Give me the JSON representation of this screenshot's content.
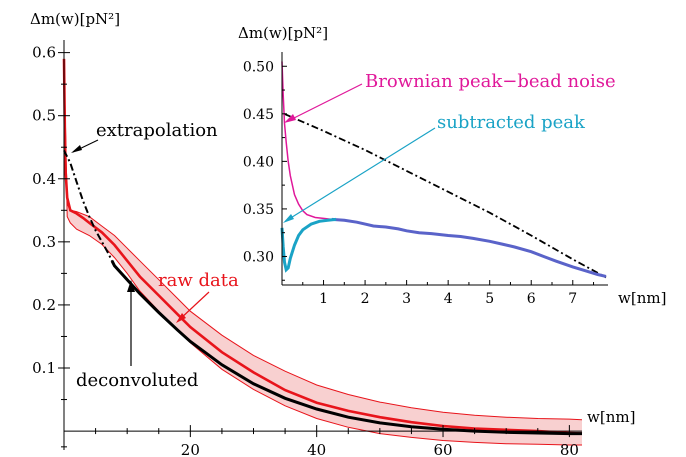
{
  "chart_data": [
    {
      "type": "line",
      "ylabel": "Δm(w)[pN²]",
      "xlabel": "w[nm]",
      "xlim": [
        0,
        82
      ],
      "ylim": [
        -0.03,
        0.62
      ],
      "xticks": [
        20,
        40,
        60,
        80
      ],
      "yticks": [
        0.1,
        0.2,
        0.3,
        0.4,
        0.5,
        0.6
      ],
      "colors": {
        "raw": "#e8141b",
        "band": "#f7c9c9",
        "deconvoluted": "#000000",
        "extrapolation": "#000000"
      },
      "series": [
        {
          "name": "raw data",
          "x": [
            0,
            0.2,
            0.5,
            1,
            2,
            3,
            4,
            6,
            8,
            10,
            12,
            15,
            18,
            20,
            25,
            30,
            35,
            40,
            45,
            50,
            55,
            60,
            65,
            70,
            75,
            80,
            82
          ],
          "y": [
            0.59,
            0.42,
            0.37,
            0.35,
            0.345,
            0.338,
            0.33,
            0.315,
            0.295,
            0.27,
            0.245,
            0.215,
            0.185,
            0.165,
            0.125,
            0.093,
            0.065,
            0.045,
            0.032,
            0.022,
            0.014,
            0.008,
            0.004,
            0.002,
            0.0,
            -0.003,
            -0.004
          ]
        },
        {
          "name": "raw data upper band",
          "x": [
            0,
            0.5,
            1,
            2,
            4,
            6,
            8,
            10,
            12,
            15,
            18,
            20,
            25,
            30,
            35,
            40,
            45,
            50,
            55,
            60,
            65,
            70,
            75,
            80,
            82
          ],
          "y": [
            0.59,
            0.36,
            0.35,
            0.348,
            0.34,
            0.325,
            0.31,
            0.29,
            0.27,
            0.24,
            0.21,
            0.19,
            0.152,
            0.12,
            0.095,
            0.073,
            0.058,
            0.046,
            0.037,
            0.03,
            0.025,
            0.022,
            0.02,
            0.019,
            0.018
          ]
        },
        {
          "name": "raw data lower band",
          "x": [
            0,
            0.5,
            1,
            2,
            4,
            6,
            8,
            10,
            12,
            15,
            18,
            20,
            25,
            30,
            35,
            40,
            45,
            50,
            55,
            60,
            65,
            70,
            75,
            80,
            82
          ],
          "y": [
            0.59,
            0.34,
            0.33,
            0.32,
            0.31,
            0.296,
            0.275,
            0.25,
            0.222,
            0.19,
            0.16,
            0.14,
            0.098,
            0.066,
            0.04,
            0.02,
            0.006,
            -0.004,
            -0.01,
            -0.015,
            -0.018,
            -0.02,
            -0.021,
            -0.022,
            -0.022
          ]
        },
        {
          "name": "deconvoluted",
          "x": [
            7.6,
            8,
            10,
            12,
            15,
            18,
            20,
            25,
            30,
            35,
            40,
            45,
            50,
            55,
            60,
            65,
            70,
            75,
            80,
            82
          ],
          "y": [
            0.27,
            0.262,
            0.24,
            0.218,
            0.188,
            0.16,
            0.142,
            0.105,
            0.075,
            0.052,
            0.035,
            0.022,
            0.013,
            0.007,
            0.003,
            0.0,
            -0.002,
            -0.003,
            -0.004,
            -0.004
          ]
        },
        {
          "name": "extrapolation",
          "x": [
            0,
            1,
            2,
            3,
            4,
            5,
            6,
            7,
            7.6
          ],
          "y": [
            0.445,
            0.425,
            0.395,
            0.365,
            0.34,
            0.318,
            0.3,
            0.282,
            0.27
          ]
        }
      ],
      "annotations": [
        {
          "text": "extrapolation",
          "color": "#000000",
          "points_to": [
            1.5,
            0.435
          ]
        },
        {
          "text": "raw data",
          "color": "#e8141b",
          "points_to": [
            19,
            0.17
          ]
        },
        {
          "text": "deconvoluted",
          "color": "#000000",
          "points_to": [
            11,
            0.235
          ]
        }
      ]
    },
    {
      "type": "line",
      "ylabel": "Δm(w)[pN²]",
      "xlabel": "w[nm]",
      "xlim": [
        0,
        7.8
      ],
      "ylim": [
        0.27,
        0.515
      ],
      "xticks": [
        1,
        2,
        3,
        4,
        5,
        6,
        7
      ],
      "yticks": [
        0.3,
        0.35,
        0.4,
        0.45,
        0.5
      ],
      "colors": {
        "brownian": "#e0189a",
        "subtracted": "#1aa3c6",
        "result": "#5a63c9",
        "extrapolation": "#000000"
      },
      "series": [
        {
          "name": "Brownian peak−bead noise",
          "x": [
            0,
            0.03,
            0.06,
            0.1,
            0.15,
            0.2,
            0.3,
            0.4,
            0.5,
            0.6,
            0.8,
            1.0,
            1.2
          ],
          "y": [
            0.505,
            0.47,
            0.44,
            0.42,
            0.4,
            0.385,
            0.365,
            0.355,
            0.348,
            0.344,
            0.341,
            0.34,
            0.339
          ]
        },
        {
          "name": "subtracted peak",
          "x": [
            0,
            0.03,
            0.06,
            0.1,
            0.15,
            0.2,
            0.3,
            0.4,
            0.5,
            0.7,
            0.9,
            1.1,
            1.3
          ],
          "y": [
            0.33,
            0.31,
            0.294,
            0.286,
            0.288,
            0.298,
            0.312,
            0.322,
            0.328,
            0.334,
            0.337,
            0.338,
            0.339
          ]
        },
        {
          "name": "deconvoluted",
          "x": [
            1.2,
            1.5,
            1.8,
            2.0,
            2.2,
            2.5,
            2.8,
            3.0,
            3.3,
            3.6,
            4.0,
            4.3,
            4.6,
            5.0,
            5.3,
            5.6,
            6.0,
            6.3,
            6.6,
            7.0,
            7.3,
            7.6,
            7.8
          ],
          "y": [
            0.339,
            0.338,
            0.336,
            0.334,
            0.332,
            0.331,
            0.329,
            0.327,
            0.325,
            0.324,
            0.322,
            0.321,
            0.319,
            0.316,
            0.313,
            0.31,
            0.305,
            0.3,
            0.295,
            0.289,
            0.285,
            0.281,
            0.279
          ]
        },
        {
          "name": "extrapolation",
          "x": [
            0.05,
            1,
            2,
            3,
            4,
            5,
            6,
            7,
            7.8
          ],
          "y": [
            0.45,
            0.432,
            0.412,
            0.39,
            0.368,
            0.346,
            0.322,
            0.297,
            0.278
          ]
        }
      ],
      "annotations": [
        {
          "text": "Brownian peak−bead noise",
          "color": "#e0189a",
          "points_to": [
            0.05,
            0.435
          ]
        },
        {
          "text": "subtracted peak",
          "color": "#1aa3c6",
          "points_to": [
            0.05,
            0.33
          ]
        }
      ]
    }
  ]
}
